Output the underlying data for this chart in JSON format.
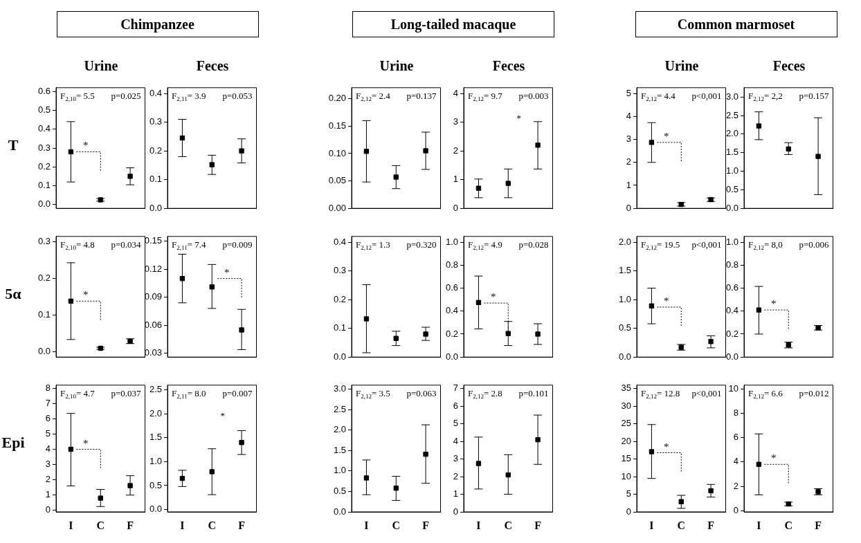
{
  "chart_data": [
    {
      "type": "scatter",
      "title": "Chimpanzee",
      "subtitle": "Urine",
      "ylabel": "T",
      "categories": [
        "I",
        "C",
        "F"
      ],
      "values": [
        0.28,
        0.025,
        0.15
      ],
      "errors": [
        [
          0.12,
          0.44
        ],
        [
          0.018,
          0.032
        ],
        [
          0.105,
          0.195
        ]
      ],
      "color": "#000000",
      "marker": "square",
      "ylim": [
        -0.02,
        0.62
      ],
      "yticks": [
        {
          "value": 0,
          "label": "0.0"
        },
        0.1,
        0.2,
        0.3,
        0.4,
        0.5,
        0.6
      ],
      "grid": false,
      "tick_labels": "y",
      "annotations": [
        "F$_{2,10}$= 5.5",
        "p=0.025",
        {
          "text": "*",
          "x": "I",
          "y": 0.28
        }
      ]
    },
    {
      "type": "scatter",
      "subtitle": "Feces",
      "categories": [
        "I",
        "C",
        "F"
      ],
      "values": [
        0.245,
        0.152,
        0.2
      ],
      "errors": [
        [
          0.18,
          0.31
        ],
        [
          0.118,
          0.185
        ],
        [
          0.158,
          0.242
        ]
      ],
      "color": "#000000",
      "marker": "square",
      "ylim": [
        0,
        0.42
      ],
      "yticks": [
        {
          "value": 0,
          "label": "0.0"
        },
        0.1,
        0.2,
        0.3,
        0.4
      ],
      "grid": false,
      "tick_labels": "y",
      "annotations": [
        "F$_{2,11}$= 3.9",
        "p=0.053"
      ]
    },
    {
      "type": "scatter",
      "title": "Long-tailed macaque",
      "subtitle": "Urine",
      "categories": [
        "I",
        "C",
        "F"
      ],
      "values": [
        0.104,
        0.057,
        0.105
      ],
      "errors": [
        [
          0.048,
          0.16
        ],
        [
          0.036,
          0.078
        ],
        [
          0.071,
          0.139
        ]
      ],
      "color": "#000000",
      "marker": "square",
      "ylim": [
        0,
        0.22
      ],
      "yticks": [
        {
          "value": 0,
          "label": "0.00"
        },
        0.05,
        {
          "value": 0.1,
          "label": "0.10"
        },
        0.15,
        {
          "value": 0.2,
          "label": "0.20"
        }
      ],
      "grid": false,
      "tick_labels": "y",
      "annotations": [
        "F$_{2,12}$= 2.4",
        "p=0.137"
      ]
    },
    {
      "type": "scatter",
      "subtitle": "Feces",
      "categories": [
        "I",
        "C",
        "F"
      ],
      "values": [
        0.7,
        0.87,
        2.2
      ],
      "errors": [
        [
          0.37,
          1.02
        ],
        [
          0.37,
          1.37
        ],
        [
          1.37,
          3.02
        ]
      ],
      "color": "#000000",
      "marker": "square",
      "ylim": [
        0,
        4.2
      ],
      "yticks": [
        0,
        1,
        2,
        3,
        4
      ],
      "grid": false,
      "tick_labels": "y",
      "annotations": [
        "F$_{2,12}$= 9.7",
        "p=0.003",
        "*"
      ]
    },
    {
      "type": "scatter",
      "title": "Common marmoset",
      "subtitle": "Urine",
      "categories": [
        "I",
        "C",
        "F"
      ],
      "values": [
        2.87,
        0.17,
        0.38
      ],
      "errors": [
        [
          2.0,
          3.73
        ],
        [
          0.1,
          0.25
        ],
        [
          0.3,
          0.45
        ]
      ],
      "color": "#000000",
      "marker": "square",
      "ylim": [
        0,
        5.25
      ],
      "yticks": [
        0,
        1,
        2,
        3,
        4,
        5
      ],
      "grid": false,
      "tick_labels": "y",
      "annotations": [
        "F$_{2,12}$= 4.4",
        "p<0,001",
        {
          "text": "*",
          "x": "I",
          "y": 2.87
        }
      ]
    },
    {
      "type": "scatter",
      "subtitle": "Feces",
      "categories": [
        "I",
        "C",
        "F"
      ],
      "values": [
        2.22,
        1.6,
        1.4
      ],
      "errors": [
        [
          1.85,
          2.6
        ],
        [
          1.45,
          1.77
        ],
        [
          0.37,
          2.44
        ]
      ],
      "color": "#000000",
      "marker": "square",
      "ylim": [
        0,
        3.25
      ],
      "yticks": [
        {
          "value": 0,
          "label": "0.0"
        },
        0.5,
        {
          "value": 1,
          "label": "1.0"
        },
        1.5,
        {
          "value": 2,
          "label": "2.0"
        },
        2.5,
        {
          "value": 3,
          "label": "3.0"
        }
      ],
      "grid": false,
      "tick_labels": "y",
      "annotations": [
        "F$_{2,12}$= 2,2",
        "p=0.157"
      ]
    },
    {
      "type": "scatter",
      "ylabel": "5α",
      "categories": [
        "I",
        "C",
        "F"
      ],
      "values": [
        0.138,
        0.009,
        0.028
      ],
      "errors": [
        [
          0.033,
          0.243
        ],
        [
          0.006,
          0.012
        ],
        [
          0.022,
          0.035
        ]
      ],
      "color": "#000000",
      "marker": "square",
      "ylim": [
        -0.015,
        0.315
      ],
      "yticks": [
        {
          "value": 0,
          "label": "0.0"
        },
        0.1,
        0.2,
        0.3
      ],
      "grid": false,
      "tick_labels": "y",
      "annotations": [
        "F$_{2,10}$= 4.8",
        "p=0.034",
        {
          "text": "*",
          "x": "I",
          "y": 0.138
        }
      ]
    },
    {
      "type": "scatter",
      "categories": [
        "I",
        "C",
        "F"
      ],
      "values": [
        0.11,
        0.101,
        0.055
      ],
      "errors": [
        [
          0.084,
          0.136
        ],
        [
          0.078,
          0.125
        ],
        [
          0.034,
          0.077
        ]
      ],
      "color": "#000000",
      "marker": "square",
      "ylim": [
        0.026,
        0.155
      ],
      "yticks": [
        0.03,
        0.06,
        0.09,
        0.12,
        0.15
      ],
      "grid": false,
      "tick_labels": "y",
      "annotations": [
        "F$_{2,11}$= 7.4",
        "p=0.009",
        {
          "text": "*",
          "x": "C",
          "y": 0.11
        }
      ]
    },
    {
      "type": "scatter",
      "categories": [
        "I",
        "C",
        "F"
      ],
      "values": [
        0.133,
        0.065,
        0.08
      ],
      "errors": [
        [
          0.015,
          0.252
        ],
        [
          0.04,
          0.09
        ],
        [
          0.058,
          0.104
        ]
      ],
      "color": "#000000",
      "marker": "square",
      "ylim": [
        0,
        0.42
      ],
      "yticks": [
        {
          "value": 0,
          "label": "0.0"
        },
        0.1,
        0.2,
        0.3,
        0.4
      ],
      "grid": false,
      "tick_labels": "y",
      "annotations": [
        "F$_{2,12}$= 1.3",
        "p=0.320"
      ]
    },
    {
      "type": "scatter",
      "categories": [
        "I",
        "C",
        "F"
      ],
      "values": [
        0.475,
        0.205,
        0.2
      ],
      "errors": [
        [
          0.245,
          0.705
        ],
        [
          0.1,
          0.31
        ],
        [
          0.11,
          0.29
        ]
      ],
      "color": "#000000",
      "marker": "square",
      "ylim": [
        0,
        1.05
      ],
      "yticks": [
        {
          "value": 0,
          "label": "0.0"
        },
        0.2,
        0.4,
        0.6,
        0.8,
        {
          "value": 1,
          "label": "1.0"
        }
      ],
      "grid": false,
      "tick_labels": "y",
      "annotations": [
        "F$_{2,12}$= 4.9",
        "p=0.028",
        {
          "text": "*",
          "x": "I",
          "y": 0.47
        }
      ]
    },
    {
      "type": "scatter",
      "categories": [
        "I",
        "C",
        "F"
      ],
      "values": [
        0.89,
        0.17,
        0.27
      ],
      "errors": [
        [
          0.58,
          1.2
        ],
        [
          0.12,
          0.22
        ],
        [
          0.16,
          0.37
        ]
      ],
      "color": "#000000",
      "marker": "square",
      "ylim": [
        0,
        2.1
      ],
      "yticks": [
        {
          "value": 0,
          "label": "0.0"
        },
        0.5,
        {
          "value": 1,
          "label": "1.0"
        },
        1.5,
        {
          "value": 2,
          "label": "2.0"
        }
      ],
      "grid": false,
      "tick_labels": "y",
      "annotations": [
        "F$_{2,12}$= 19.5",
        "p<0,001",
        {
          "text": "*",
          "x": "I",
          "y": 0.87
        }
      ]
    },
    {
      "type": "scatter",
      "categories": [
        "I",
        "C",
        "F"
      ],
      "values": [
        0.41,
        0.105,
        0.255
      ],
      "errors": [
        [
          0.2,
          0.615
        ],
        [
          0.08,
          0.13
        ],
        [
          0.235,
          0.275
        ]
      ],
      "color": "#000000",
      "marker": "square",
      "ylim": [
        0,
        1.05
      ],
      "yticks": [
        {
          "value": 0,
          "label": "0.0"
        },
        0.2,
        0.4,
        0.6,
        0.8,
        {
          "value": 1,
          "label": "1.0"
        }
      ],
      "grid": false,
      "tick_labels": "y",
      "annotations": [
        "F$_{2,12}$= 8,0",
        "p=0.006",
        {
          "text": "*",
          "x": "I",
          "y": 0.41
        }
      ]
    },
    {
      "type": "scatter",
      "ylabel": "Epi",
      "categories": [
        "I",
        "C",
        "F"
      ],
      "values": [
        4.0,
        0.8,
        1.62
      ],
      "errors": [
        [
          1.6,
          6.35
        ],
        [
          0.25,
          1.37
        ],
        [
          1.0,
          2.27
        ]
      ],
      "color": "#000000",
      "marker": "square",
      "ylim": [
        -0.1,
        8.2
      ],
      "yticks": [
        0,
        1,
        2,
        3,
        4,
        5,
        6,
        7,
        8
      ],
      "grid": false,
      "annotations": [
        "F$_{2,10}$= 4.7",
        "p=0.037",
        {
          "text": "*",
          "x": "I",
          "y": 4.0
        }
      ]
    },
    {
      "type": "scatter",
      "categories": [
        "I",
        "C",
        "F"
      ],
      "values": [
        0.65,
        0.79,
        1.4
      ],
      "errors": [
        [
          0.48,
          0.82
        ],
        [
          0.31,
          1.27
        ],
        [
          1.15,
          1.65
        ]
      ],
      "color": "#000000",
      "marker": "square",
      "ylim": [
        -0.05,
        2.6
      ],
      "yticks": [
        {
          "value": 0,
          "label": "0.0"
        },
        0.5,
        {
          "value": 1,
          "label": "1.0"
        },
        1.5,
        {
          "value": 2,
          "label": "2.0"
        },
        2.5
      ],
      "grid": false,
      "annotations": [
        "F$_{2,11}$= 8.0",
        "p=0.007",
        "*"
      ]
    },
    {
      "type": "scatter",
      "categories": [
        "I",
        "C",
        "F"
      ],
      "values": [
        0.83,
        0.58,
        1.41
      ],
      "errors": [
        [
          0.42,
          1.27
        ],
        [
          0.28,
          0.87
        ],
        [
          0.7,
          2.13
        ]
      ],
      "color": "#000000",
      "marker": "square",
      "ylim": [
        0,
        3.1
      ],
      "yticks": [
        {
          "value": 0,
          "label": "0.0"
        },
        0.5,
        {
          "value": 1,
          "label": "1.0"
        },
        1.5,
        {
          "value": 2,
          "label": "2.0"
        },
        2.5,
        {
          "value": 3,
          "label": "3.0"
        }
      ],
      "grid": false,
      "annotations": [
        "F$_{2,12}$= 3.5",
        "p=0.063"
      ]
    },
    {
      "type": "scatter",
      "categories": [
        "I",
        "C",
        "F"
      ],
      "values": [
        2.75,
        2.1,
        4.1
      ],
      "errors": [
        [
          1.3,
          4.25
        ],
        [
          1.0,
          3.25
        ],
        [
          2.7,
          5.5
        ]
      ],
      "color": "#000000",
      "marker": "square",
      "ylim": [
        0,
        7.2
      ],
      "yticks": [
        0,
        1,
        2,
        3,
        4,
        5,
        6,
        7
      ],
      "grid": false,
      "annotations": [
        "F$_{2,12}$= 2.8",
        "p=0.101"
      ]
    },
    {
      "type": "scatter",
      "categories": [
        "I",
        "C",
        "F"
      ],
      "values": [
        17.1,
        2.9,
        6.0
      ],
      "errors": [
        [
          9.5,
          24.8
        ],
        [
          1.0,
          4.7
        ],
        [
          4.2,
          7.8
        ]
      ],
      "color": "#000000",
      "marker": "square",
      "ylim": [
        0,
        36
      ],
      "yticks": [
        0,
        5,
        10,
        15,
        20,
        25,
        30,
        35
      ],
      "grid": false,
      "annotations": [
        "F$_{2,12}$= 12.8",
        "p<0,001",
        {
          "text": "*",
          "x": "I",
          "y": 16.8
        }
      ]
    },
    {
      "type": "scatter",
      "categories": [
        "I",
        "C",
        "F"
      ],
      "values": [
        3.8,
        0.55,
        1.55
      ],
      "errors": [
        [
          1.3,
          6.3
        ],
        [
          0.4,
          0.7
        ],
        [
          1.3,
          1.8
        ]
      ],
      "color": "#000000",
      "marker": "square",
      "ylim": [
        -0.1,
        10.3
      ],
      "yticks": [
        0,
        2,
        4,
        6,
        8,
        10
      ],
      "grid": false,
      "annotations": [
        "F$_{2,12}$= 6.6",
        "p=0.012",
        {
          "text": "*",
          "x": "I",
          "y": 3.8
        }
      ]
    }
  ]
}
